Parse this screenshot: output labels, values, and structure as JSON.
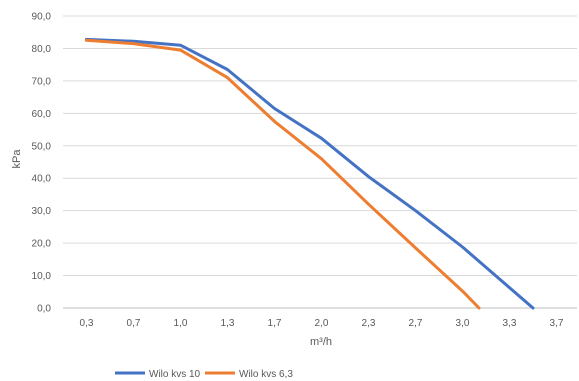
{
  "chart_data": {
    "type": "line",
    "title": "",
    "xlabel": "m³/h",
    "ylabel": "kPa",
    "ylim": [
      0,
      90
    ],
    "y_ticks": [
      "0,0",
      "10,0",
      "20,0",
      "30,0",
      "40,0",
      "50,0",
      "60,0",
      "70,0",
      "80,0",
      "90,0"
    ],
    "x_ticks": [
      "0,3",
      "0,7",
      "1,0",
      "1,3",
      "1,7",
      "2,0",
      "2,3",
      "2,7",
      "3,0",
      "3,3",
      "3,7"
    ],
    "x_range": [
      0.167,
      3.833
    ],
    "grid": "horizontal",
    "legend_position": "bottom",
    "series": [
      {
        "name": "Wilo kvs 10",
        "color": "#4472C4",
        "x": [
          0.333,
          0.667,
          1.0,
          1.333,
          1.667,
          2.0,
          2.333,
          2.667,
          3.0,
          3.5
        ],
        "y": [
          82.8,
          82.2,
          81.0,
          73.5,
          61.5,
          52.3,
          40.5,
          30.0,
          18.8,
          0.0
        ]
      },
      {
        "name": "Wilo kvs 6,3",
        "color": "#ED7D31",
        "x": [
          0.333,
          0.667,
          1.0,
          1.333,
          1.667,
          2.0,
          2.333,
          2.667,
          3.0,
          3.117
        ],
        "y": [
          82.5,
          81.5,
          79.5,
          71.0,
          57.5,
          46.0,
          32.0,
          18.5,
          5.2,
          0.0
        ]
      }
    ]
  }
}
